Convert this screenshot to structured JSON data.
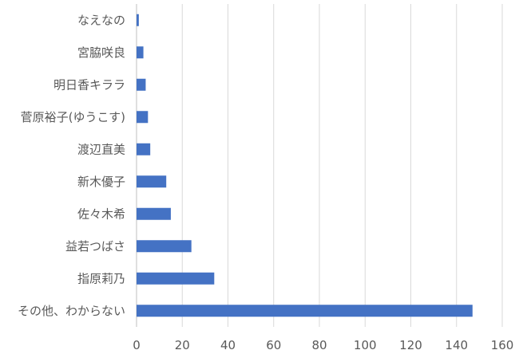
{
  "chart_data": {
    "type": "bar",
    "orientation": "horizontal",
    "title": "",
    "xlabel": "",
    "ylabel": "",
    "categories": [
      "なえなの",
      "宮脇咲良",
      "明日香キララ",
      "菅原裕子(ゆうこす)",
      "渡辺直美",
      "新木優子",
      "佐々木希",
      "益若つばさ",
      "指原莉乃",
      "その他、わからない"
    ],
    "values": [
      1,
      3,
      4,
      5,
      6,
      13,
      15,
      24,
      34,
      147
    ],
    "xlim": [
      0,
      160
    ],
    "xticks": [
      0,
      20,
      40,
      60,
      80,
      100,
      120,
      140,
      160
    ],
    "grid": "vertical",
    "legend": "none",
    "bar_color": "#4472c4"
  }
}
